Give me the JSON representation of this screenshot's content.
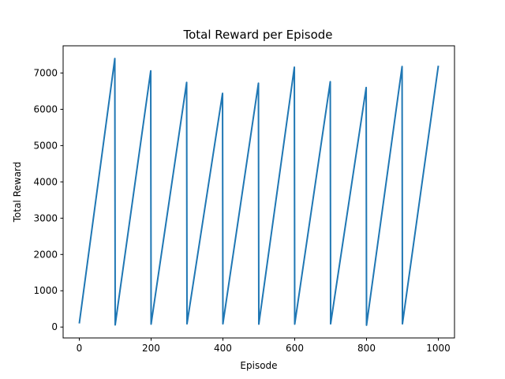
{
  "chart_data": {
    "type": "line",
    "title": "Total Reward per Episode",
    "xlabel": "Episode",
    "ylabel": "Total Reward",
    "xlim": [
      -45,
      1045
    ],
    "ylim": [
      -300,
      7750
    ],
    "xticks": [
      0,
      200,
      400,
      600,
      800,
      1000
    ],
    "yticks": [
      0,
      1000,
      2000,
      3000,
      4000,
      5000,
      6000,
      7000
    ],
    "grid": false,
    "series": [
      {
        "color": "#1f77b4",
        "points": [
          [
            0,
            100
          ],
          [
            99,
            7400
          ],
          [
            100,
            60
          ],
          [
            199,
            7060
          ],
          [
            200,
            80
          ],
          [
            299,
            6740
          ],
          [
            300,
            90
          ],
          [
            399,
            6440
          ],
          [
            400,
            90
          ],
          [
            499,
            6720
          ],
          [
            500,
            80
          ],
          [
            599,
            7160
          ],
          [
            600,
            80
          ],
          [
            699,
            6760
          ],
          [
            700,
            90
          ],
          [
            799,
            6600
          ],
          [
            800,
            50
          ],
          [
            899,
            7180
          ],
          [
            900,
            90
          ],
          [
            1000,
            7200
          ]
        ]
      }
    ]
  }
}
